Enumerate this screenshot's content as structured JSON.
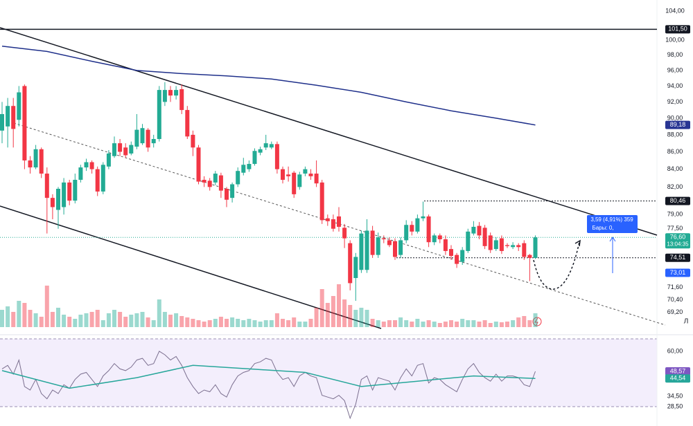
{
  "chart_data": {
    "type": "candlestick",
    "log": true,
    "ylim": [
      67.4,
      105.6
    ],
    "yticks": [
      {
        "value": 104,
        "label": "104,00"
      },
      {
        "value": 100,
        "label": "100,00"
      },
      {
        "value": 98,
        "label": "98,00"
      },
      {
        "value": 96,
        "label": "96,00"
      },
      {
        "value": 94,
        "label": "94,00"
      },
      {
        "value": 92,
        "label": "92,00"
      },
      {
        "value": 90,
        "label": "90,00"
      },
      {
        "value": 88,
        "label": "88,00"
      },
      {
        "value": 86,
        "label": "86,00"
      },
      {
        "value": 84,
        "label": "84,00"
      },
      {
        "value": 82,
        "label": "82,00"
      },
      {
        "value": 79,
        "label": "79,00"
      },
      {
        "value": 77.5,
        "label": "77,50"
      },
      {
        "value": 71.6,
        "label": "71,60"
      },
      {
        "value": 70.4,
        "label": "70,40"
      },
      {
        "value": 69.2,
        "label": "69,20"
      }
    ],
    "up_color": "#22ab94",
    "down_color": "#f23645",
    "open": [
      88.5,
      89,
      91.5,
      89.8,
      94,
      85.0,
      84.2,
      86.3,
      83.5,
      80.8,
      79.5,
      79.8,
      82.5,
      80.5,
      82.8,
      84.2,
      84.8,
      84.0,
      81.5,
      84.3,
      85.5,
      87.0,
      86.5,
      85.8,
      86.6,
      87.0,
      88.6,
      87,
      87.5,
      92.0,
      93.5,
      92.8,
      93.6,
      91.0,
      88,
      86.5,
      82.8,
      82.7,
      82.5,
      83.3,
      81.8,
      80.8,
      82.3,
      83.6,
      84.0,
      84.6,
      85.9,
      86.5,
      86.5,
      86.9,
      84.0,
      83.4,
      83.6,
      82,
      83.5,
      83.5,
      83.5,
      82.5,
      78.6,
      78.5,
      78.8,
      77.6,
      76.0,
      72.5,
      73.3,
      73.3,
      77.3,
      74.8,
      76.5,
      76.3,
      76.2,
      74.8,
      76.3,
      77.9,
      77.2,
      78.6,
      78.8,
      76.1,
      76.8,
      76.4,
      75.4,
      74.8,
      74.1,
      75.2,
      77.0,
      77.8,
      77.6,
      76.8,
      75.4,
      76.5,
      75.8,
      75.6,
      75.8,
      76,
      74.8,
      74.5
    ],
    "high": [
      92,
      92.5,
      92.5,
      94,
      94.2,
      85.5,
      86.8,
      86.5,
      84.2,
      81.2,
      82,
      83,
      82.8,
      83.5,
      84.5,
      85.2,
      85,
      84.3,
      84.8,
      86.2,
      87.8,
      87.5,
      87,
      87.2,
      90.5,
      89.3,
      88.8,
      88,
      94,
      94.5,
      94,
      94,
      94.2,
      91.5,
      88.5,
      86.8,
      83.2,
      83,
      83.8,
      83.6,
      82,
      82.5,
      84.2,
      85.3,
      85,
      86.4,
      86.6,
      88,
      87.2,
      87.2,
      84.3,
      84.3,
      83.8,
      83.7,
      84.3,
      84,
      85,
      82.8,
      79,
      79,
      79.8,
      78,
      76.3,
      75,
      77.3,
      78.5,
      77.8,
      77.1,
      76.8,
      76.6,
      76.5,
      76.6,
      78.4,
      78.3,
      79,
      80.4,
      79,
      77,
      77,
      76.8,
      75.8,
      75,
      75.6,
      77.5,
      78.3,
      78.2,
      77.9,
      77.1,
      76.6,
      76.8,
      76,
      76.1,
      76,
      76.3,
      74.9,
      76.8
    ],
    "low": [
      87,
      86.5,
      86.5,
      89,
      84,
      83.5,
      84,
      83,
      77,
      78.5,
      77.5,
      79,
      80,
      80.2,
      82.5,
      83.8,
      83.5,
      81,
      81.2,
      84,
      85.3,
      85.5,
      85.3,
      85.6,
      86.3,
      86.8,
      86,
      86.5,
      87.2,
      91.5,
      92,
      92.3,
      90.5,
      87.5,
      85.5,
      82.3,
      82,
      81.6,
      82.2,
      80.8,
      79.8,
      80.3,
      82,
      83.3,
      83.7,
      84.4,
      85.6,
      86.2,
      86.3,
      83.5,
      82.4,
      82.6,
      80.8,
      81.7,
      83.2,
      82.8,
      82,
      78,
      77.8,
      77.2,
      77.2,
      75.5,
      71.3,
      70.3,
      73,
      73,
      74.5,
      74.5,
      76,
      75.6,
      74.3,
      74.5,
      76,
      76.8,
      77,
      78.3,
      75.6,
      75.8,
      76,
      74.8,
      74.3,
      73.5,
      73.8,
      75,
      76.8,
      76.4,
      75.4,
      75,
      75.2,
      74.9,
      75.5,
      75.4,
      75.2,
      74.3,
      72.2,
      74.4
    ],
    "close": [
      90.5,
      91.5,
      88.7,
      93.2,
      85.0,
      84.2,
      86.3,
      83.5,
      80.8,
      79.8,
      81.8,
      82.5,
      80.5,
      82.8,
      84.2,
      84.8,
      84.0,
      81.5,
      84.5,
      85.8,
      87.0,
      86.0,
      85.6,
      86.8,
      88.6,
      88.8,
      86.5,
      87.5,
      93.5,
      93.5,
      92.8,
      93.5,
      91.0,
      87.8,
      86.5,
      82.6,
      82.5,
      82.0,
      83.5,
      81.6,
      80.6,
      82.3,
      83.8,
      84.5,
      84.6,
      86.1,
      86.3,
      87.0,
      86.9,
      84.0,
      82.8,
      83.2,
      81.2,
      83.4,
      84,
      83.2,
      82.4,
      78.4,
      78.3,
      77.5,
      77.7,
      76.5,
      72.0,
      74.6,
      77.0,
      77.3,
      74.8,
      76.6,
      76.4,
      75.8,
      74.6,
      76.3,
      77.9,
      77.2,
      78.6,
      78.8,
      76.1,
      76.8,
      76.4,
      75.2,
      74.7,
      73.9,
      75.3,
      77.2,
      77.7,
      76.8,
      75.7,
      75.3,
      76.3,
      75.2,
      75.7,
      75.8,
      75.6,
      74.6,
      74.5,
      76.6
    ],
    "volume": [
      25,
      30,
      22,
      38,
      35,
      25,
      20,
      15,
      60,
      22,
      28,
      18,
      15,
      12,
      18,
      20,
      22,
      25,
      10,
      20,
      25,
      22,
      15,
      18,
      20,
      22,
      14,
      10,
      40,
      22,
      18,
      20,
      16,
      14,
      12,
      10,
      8,
      10,
      12,
      15,
      12,
      14,
      12,
      10,
      12,
      10,
      8,
      10,
      10,
      20,
      12,
      10,
      14,
      8,
      8,
      12,
      28,
      55,
      35,
      45,
      62,
      40,
      32,
      25,
      28,
      25,
      12,
      10,
      8,
      10,
      10,
      14,
      10,
      8,
      12,
      8,
      10,
      8,
      6,
      8,
      10,
      8,
      12,
      10,
      10,
      8,
      10,
      6,
      8,
      7,
      8,
      10,
      14,
      16,
      10,
      20
    ],
    "ma": {
      "color": "#1e2f8a",
      "x": [
        0,
        8,
        16,
        24,
        32,
        40,
        48,
        56,
        64,
        72,
        80,
        88,
        95
      ],
      "values": [
        99.2,
        98.5,
        97.2,
        96.0,
        95.6,
        95.3,
        94.9,
        94.1,
        93.2,
        92.0,
        90.9,
        90.0,
        89.18
      ]
    },
    "price_tags": [
      {
        "value": 101.5,
        "label": "101,50",
        "color": "#131722",
        "line": "solid"
      },
      {
        "value": 89.18,
        "label": "89,18",
        "color": "#283593"
      },
      {
        "value": 80.46,
        "label": "80,46",
        "color": "#131722",
        "line": "dotted"
      },
      {
        "value": 76.6,
        "label": "76,60",
        "sublabel": "13:04:35",
        "color": "#22ab94",
        "line": "current"
      },
      {
        "value": 74.51,
        "label": "74,51",
        "color": "#131722",
        "line": "dotted"
      },
      {
        "value": 73.01,
        "label": "73,01",
        "color": "#2962ff"
      }
    ],
    "measure": {
      "line1": "3,59 (4,91%) 359",
      "line2": "Бары: 0,"
    },
    "scale_mode": "Л",
    "rsi": {
      "ylim": [
        17.6,
        67.8
      ],
      "yticks": [
        {
          "value": 60,
          "label": "60,00"
        },
        {
          "value": 34.5,
          "label": "34,50"
        },
        {
          "value": 28.5,
          "label": "28,50"
        }
      ],
      "color": "#7b6f8f",
      "values": [
        50,
        52,
        47,
        55,
        40,
        38,
        44,
        36,
        33,
        38,
        36,
        41,
        39,
        44,
        47,
        48,
        44,
        40,
        46,
        49,
        53,
        50,
        49,
        51,
        55,
        56,
        52,
        53,
        60,
        58,
        55,
        57,
        52,
        45,
        40,
        36,
        38,
        37,
        41,
        36,
        34,
        41,
        46,
        48,
        49,
        53,
        54,
        56,
        55,
        48,
        44,
        45,
        40,
        46,
        48,
        46,
        45,
        35,
        34,
        33,
        35,
        32,
        22,
        30,
        44,
        46,
        38,
        45,
        44,
        43,
        38,
        45,
        50,
        46,
        52,
        53,
        42,
        45,
        44,
        41,
        39,
        37,
        44,
        50,
        53,
        48,
        45,
        43,
        47,
        43,
        46,
        46,
        45,
        41,
        40,
        48.57
      ],
      "ma": {
        "color": "#26a69a",
        "x": [
          0,
          12,
          24,
          34,
          44,
          54,
          64,
          74,
          84,
          95
        ],
        "values": [
          49,
          39,
          45,
          52,
          50,
          48,
          40,
          43,
          46,
          44.54
        ]
      },
      "tags": [
        {
          "value": 48.57,
          "label": "48,57",
          "color": "#7e57c2"
        },
        {
          "value": 44.54,
          "label": "44,54",
          "color": "#26a69a"
        }
      ]
    }
  }
}
